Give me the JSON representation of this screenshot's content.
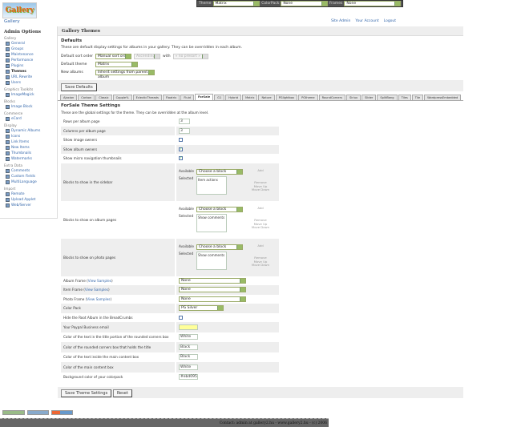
{
  "header": {
    "logo": "Gallery",
    "breadcrumb": "Gallery",
    "links": [
      "Site Admin",
      "Your Account",
      "Logout"
    ]
  },
  "topbar": {
    "theme_label": "Theme",
    "theme": "Matrix",
    "colorpack_label": "ColorPack",
    "colorpack": "None",
    "frames_label": "Frames",
    "frames": "None"
  },
  "sidebar": {
    "title": "Admin Options",
    "groups": [
      {
        "label": "Gallery",
        "items": [
          {
            "label": "General",
            "icon": "general-icon"
          },
          {
            "label": "Groups",
            "icon": "groups-icon"
          },
          {
            "label": "Maintenance",
            "icon": "maintenance-icon"
          },
          {
            "label": "Performance",
            "icon": "performance-icon"
          },
          {
            "label": "Plugins",
            "icon": "plugins-icon"
          },
          {
            "label": "Themes",
            "icon": "themes-icon",
            "current": true
          },
          {
            "label": "URL Rewrite",
            "icon": "url-rewrite-icon"
          },
          {
            "label": "Users",
            "icon": "users-icon"
          }
        ]
      },
      {
        "label": "Graphics Toolkits",
        "items": [
          {
            "label": "ImageMagick",
            "icon": "imagemagick-icon"
          }
        ]
      },
      {
        "label": "Blocks",
        "items": [
          {
            "label": "Image Block",
            "icon": "image-block-icon"
          }
        ]
      },
      {
        "label": "Commerce",
        "items": [
          {
            "label": "eCard",
            "icon": "ecard-icon"
          }
        ]
      },
      {
        "label": "Display",
        "items": [
          {
            "label": "Dynamic Albums",
            "icon": "dynamic-albums-icon"
          },
          {
            "label": "Icons",
            "icon": "icons-icon"
          },
          {
            "label": "Link Items",
            "icon": "link-items-icon"
          },
          {
            "label": "New Items",
            "icon": "new-items-icon"
          },
          {
            "label": "Thumbnails",
            "icon": "thumbnails-icon"
          },
          {
            "label": "Watermarks",
            "icon": "watermarks-icon"
          }
        ]
      },
      {
        "label": "Extra Data",
        "items": [
          {
            "label": "Comments",
            "icon": "comments-icon"
          },
          {
            "label": "Custom Fields",
            "icon": "custom-fields-icon"
          },
          {
            "label": "MultiLanguage",
            "icon": "multilanguage-icon"
          }
        ]
      },
      {
        "label": "Import",
        "items": [
          {
            "label": "Remote",
            "icon": "remote-icon"
          },
          {
            "label": "Upload Applet",
            "icon": "upload-applet-icon"
          },
          {
            "label": "Web/Server",
            "icon": "web-server-icon"
          }
        ]
      }
    ]
  },
  "main": {
    "title": "Gallery Themes",
    "defaults": {
      "heading": "Defaults",
      "desc": "These are default display settings for albums in your gallery. They can be overridden in each album.",
      "sort_label": "Default sort order",
      "sort": "Manual sort order",
      "direction": "Ascending",
      "with_label": "with",
      "presort": "« no presort »",
      "theme_label": "Default theme",
      "theme": "Matrix",
      "new_label": "New albums",
      "new_albums": "Inherit settings from parent album",
      "save": "Save Defaults"
    },
    "tabs": [
      "Ajaxian",
      "Carbon",
      "Classic",
      "Copple%",
      "EclecticThreads",
      "Floatrix",
      "Fluid",
      "ForSale",
      "G1",
      "Hybrid",
      "Matrix",
      "Nature",
      "PGlightbox",
      "PGtheme",
      "RoundCorners",
      "Siriux",
      "Slider",
      "SplitBang",
      "Tiles",
      "Tile",
      "WordpressEmbedded"
    ],
    "active_tab": "ForSale",
    "theme_settings": {
      "heading": "ForSale Theme Settings",
      "desc": "These are the global settings for the theme. They can be overridden at the album level.",
      "available": "Available",
      "selected": "Selected",
      "choose": "Choose a block",
      "add": "Add",
      "remove": "Remove",
      "move_up": "Move Up",
      "move_down": "Move Down",
      "view_samples": "View Samples",
      "rows": [
        {
          "label": "Rows per album page",
          "type": "text",
          "value": "3"
        },
        {
          "label": "Columns per album page",
          "type": "text",
          "value": "3"
        },
        {
          "label": "Show image owners",
          "type": "check",
          "checked": false
        },
        {
          "label": "Show album owners",
          "type": "check",
          "checked": true
        },
        {
          "label": "Show micro navigation thumbnails",
          "type": "check",
          "checked": true
        },
        {
          "label": "Blocks to show in the sidebar",
          "type": "blocks",
          "value": "Item actions"
        },
        {
          "label": "Blocks to show on album pages",
          "type": "blocks",
          "value": "Show comments"
        },
        {
          "label": "Blocks to show on photo pages",
          "type": "blocks",
          "value": "Show comments"
        },
        {
          "label": "Album Frame",
          "type": "frame",
          "value": "None"
        },
        {
          "label": "Item Frame",
          "type": "frame",
          "value": "None"
        },
        {
          "label": "Photo Frame",
          "type": "frame",
          "value": "None"
        },
        {
          "label": "Color Pack",
          "type": "select",
          "value": "PG Silver"
        },
        {
          "label": "Hide the Root Album in the BreadCrumbs",
          "type": "check",
          "checked": false
        },
        {
          "label": "Your Paypal Business email",
          "type": "email",
          "value": ""
        },
        {
          "label": "Color of the text in the title portion of the rounded corners box",
          "type": "text",
          "value": "White"
        },
        {
          "label": "Color of the rounded corners box that holds the title",
          "type": "text",
          "value": "Black"
        },
        {
          "label": "Color of the text inside the main content box",
          "type": "text",
          "value": "Black"
        },
        {
          "label": "Color of the main content box",
          "type": "text",
          "value": "White"
        },
        {
          "label": "Background color of your colorpack",
          "type": "text",
          "value": "#ebd095"
        }
      ],
      "save": "Save Theme Settings",
      "reset": "Reset"
    }
  },
  "badges": [
    "valid-xhtml-badge",
    "gallery2-badge",
    "gallery2-help-badge"
  ],
  "footer": "Contact: admin at gallery2.hu - www.gallery2.hu - (c) 2006"
}
